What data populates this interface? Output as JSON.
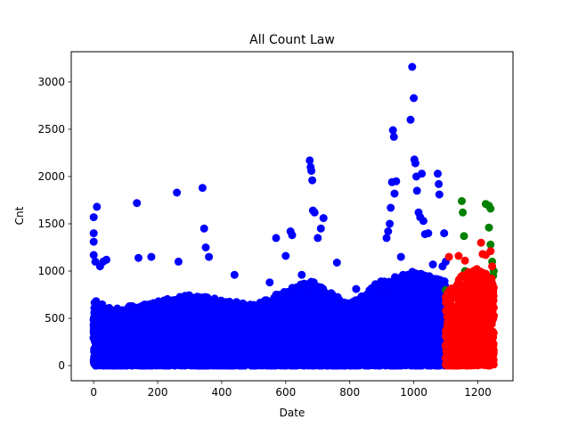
{
  "chart_data": {
    "type": "scatter",
    "title": "All Count Law",
    "xlabel": "Date",
    "ylabel": "Cnt",
    "xlim": [
      -70,
      1310
    ],
    "ylim": [
      -160,
      3320
    ],
    "xticks": [
      0,
      200,
      400,
      600,
      800,
      1000,
      1200
    ],
    "yticks": [
      0,
      500,
      1000,
      1500,
      2000,
      2500,
      3000
    ],
    "grid": false,
    "legend": "none",
    "series": [
      {
        "color": "#0000ff",
        "x_range": [
          0,
          1100
        ],
        "bulk_ceiling": [
          [
            0,
            700
          ],
          [
            60,
            600
          ],
          [
            150,
            650
          ],
          [
            300,
            750
          ],
          [
            400,
            700
          ],
          [
            500,
            650
          ],
          [
            600,
            800
          ],
          [
            680,
            900
          ],
          [
            800,
            650
          ],
          [
            900,
            900
          ],
          [
            1000,
            1000
          ],
          [
            1100,
            900
          ]
        ],
        "points": [
          [
            0,
            1570
          ],
          [
            0,
            1400
          ],
          [
            0,
            1310
          ],
          [
            10,
            1680
          ],
          [
            0,
            1170
          ],
          [
            5,
            1100
          ],
          [
            20,
            1050
          ],
          [
            30,
            1100
          ],
          [
            40,
            1120
          ],
          [
            135,
            1720
          ],
          [
            140,
            1140
          ],
          [
            180,
            1150
          ],
          [
            260,
            1830
          ],
          [
            265,
            1100
          ],
          [
            340,
            1880
          ],
          [
            345,
            1450
          ],
          [
            350,
            1250
          ],
          [
            360,
            1150
          ],
          [
            440,
            960
          ],
          [
            550,
            880
          ],
          [
            570,
            1350
          ],
          [
            600,
            1160
          ],
          [
            615,
            1420
          ],
          [
            620,
            1380
          ],
          [
            650,
            960
          ],
          [
            675,
            2170
          ],
          [
            678,
            2100
          ],
          [
            680,
            2060
          ],
          [
            683,
            1960
          ],
          [
            685,
            1640
          ],
          [
            690,
            1620
          ],
          [
            700,
            1350
          ],
          [
            710,
            1450
          ],
          [
            718,
            1560
          ],
          [
            760,
            1090
          ],
          [
            820,
            810
          ],
          [
            880,
            860
          ],
          [
            915,
            1350
          ],
          [
            920,
            1420
          ],
          [
            925,
            1500
          ],
          [
            928,
            1670
          ],
          [
            932,
            1940
          ],
          [
            935,
            2490
          ],
          [
            938,
            2420
          ],
          [
            940,
            1820
          ],
          [
            945,
            1950
          ],
          [
            960,
            1150
          ],
          [
            990,
            2600
          ],
          [
            995,
            3160
          ],
          [
            1000,
            2830
          ],
          [
            1002,
            2180
          ],
          [
            1005,
            2140
          ],
          [
            1008,
            2000
          ],
          [
            1010,
            1850
          ],
          [
            1015,
            1620
          ],
          [
            1020,
            1570
          ],
          [
            1025,
            2030
          ],
          [
            1030,
            1530
          ],
          [
            1035,
            1390
          ],
          [
            1045,
            1400
          ],
          [
            1060,
            1070
          ],
          [
            1075,
            2030
          ],
          [
            1078,
            1920
          ],
          [
            1080,
            1810
          ],
          [
            1090,
            1050
          ],
          [
            1095,
            1400
          ],
          [
            1100,
            1100
          ]
        ]
      },
      {
        "color": "#008000",
        "points": [
          [
            1100,
            800
          ],
          [
            1150,
            1740
          ],
          [
            1153,
            1620
          ],
          [
            1157,
            1370
          ],
          [
            1160,
            1000
          ],
          [
            1200,
            1000
          ],
          [
            1210,
            900
          ],
          [
            1225,
            1710
          ],
          [
            1235,
            1690
          ],
          [
            1240,
            1660
          ],
          [
            1245,
            1100
          ],
          [
            1248,
            950
          ],
          [
            1250,
            1000
          ],
          [
            1240,
            1280
          ],
          [
            1235,
            1460
          ]
        ]
      },
      {
        "color": "#ff0000",
        "x_range": [
          1100,
          1250
        ],
        "bulk_ceiling": [
          [
            1100,
            750
          ],
          [
            1150,
            950
          ],
          [
            1200,
            1050
          ],
          [
            1250,
            900
          ]
        ],
        "points": [
          [
            1110,
            1150
          ],
          [
            1140,
            1160
          ],
          [
            1160,
            1110
          ],
          [
            1210,
            1300
          ],
          [
            1215,
            1180
          ],
          [
            1225,
            1170
          ],
          [
            1240,
            1210
          ],
          [
            1245,
            1050
          ]
        ]
      }
    ]
  }
}
